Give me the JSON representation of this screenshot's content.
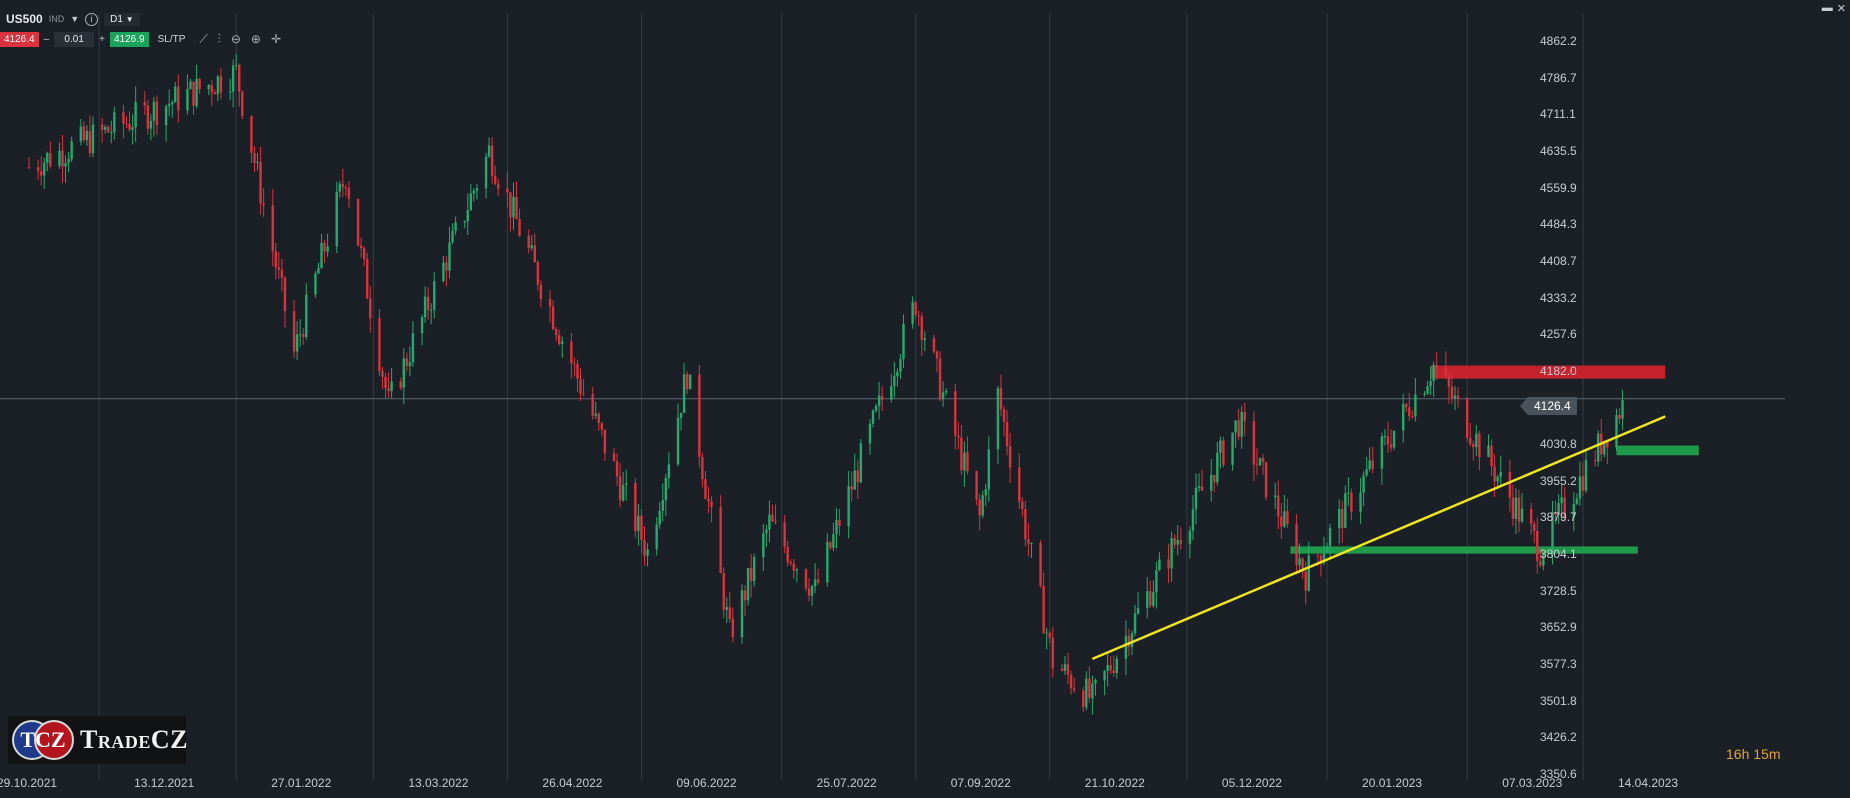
{
  "toolbar": {
    "symbol": "US500",
    "instrument_type": "IND",
    "timeframe": "D1",
    "sell_price": "4126.4",
    "volume": "0.01",
    "buy_price": "4126.9",
    "sltp_label": "SL/TP",
    "minus": "–",
    "plus": "+",
    "info": "i"
  },
  "colors": {
    "background": "#1b2026",
    "bull": "#26a96c",
    "bear": "#d8333f",
    "trendline": "#f1e51c",
    "resistance_zone": "#c4232e",
    "support_zone": "#1d9a4a"
  },
  "current_price_label": "4126.4",
  "countdown": "16h 15m",
  "logo": {
    "badge_text": "TCZ",
    "name": "TradeCZ"
  },
  "chart_data": {
    "type": "candlestick",
    "symbol": "US500",
    "timeframe": "D1",
    "y_ticks": [
      "4862.2",
      "4786.7",
      "4711.1",
      "4635.5",
      "4559.9",
      "4484.3",
      "4408.7",
      "4333.2",
      "4257.6",
      "4182.0",
      "4030.8",
      "3955.2",
      "3879.7",
      "3804.1",
      "3728.5",
      "3652.9",
      "3577.3",
      "3501.8",
      "3426.2",
      "3350.6"
    ],
    "ylim": [
      3350.6,
      4862.2
    ],
    "x_ticks": [
      "29.10.2021",
      "13.12.2021",
      "27.01.2022",
      "13.03.2022",
      "26.04.2022",
      "09.06.2022",
      "25.07.2022",
      "07.09.2022",
      "21.10.2022",
      "05.12.2022",
      "20.01.2023",
      "07.03.2023",
      "14.04.2023"
    ],
    "current_price": 4126.4,
    "grid": true,
    "path_close": [
      [
        "29.10.2021",
        4605
      ],
      [
        "13.12.2021",
        4712
      ],
      [
        "27.01.2022",
        4326
      ],
      [
        "13.03.2022",
        4204
      ],
      [
        "26.04.2022",
        4175
      ],
      [
        "09.06.2022",
        4017
      ],
      [
        "25.07.2022",
        3966
      ],
      [
        "07.09.2022",
        3979
      ],
      [
        "21.10.2022",
        3752
      ],
      [
        "05.12.2022",
        3998
      ],
      [
        "20.01.2023",
        3972
      ],
      [
        "07.03.2023",
        3986
      ],
      [
        "14.04.2023",
        null
      ]
    ],
    "swing_points": [
      {
        "date": "29.10.2021",
        "value": 4605
      },
      {
        "date": "05.01.2022",
        "value": 4800
      },
      {
        "date": "24.01.2022",
        "value": 4220
      },
      {
        "date": "10.02.2022",
        "value": 4590
      },
      {
        "date": "24.02.2022",
        "value": 4115
      },
      {
        "date": "29.03.2022",
        "value": 4637
      },
      {
        "date": "27.04.2022",
        "value": 4170
      },
      {
        "date": "20.05.2022",
        "value": 3810
      },
      {
        "date": "02.06.2022",
        "value": 4180
      },
      {
        "date": "16.06.2022",
        "value": 3640
      },
      {
        "date": "29.06.2022",
        "value": 3870
      },
      {
        "date": "14.07.2022",
        "value": 3730
      },
      {
        "date": "16.08.2022",
        "value": 4325
      },
      {
        "date": "06.09.2022",
        "value": 3880
      },
      {
        "date": "12.09.2022",
        "value": 4135
      },
      {
        "date": "30.09.2022",
        "value": 3585
      },
      {
        "date": "13.10.2022",
        "value": 3505
      },
      {
        "date": "30.11.2022",
        "value": 4080
      },
      {
        "date": "22.12.2022",
        "value": 3765
      },
      {
        "date": "02.02.2023",
        "value": 4195
      },
      {
        "date": "09.03.2023",
        "value": 3815
      },
      {
        "date": "06.04.2023",
        "value": 4125
      }
    ],
    "annotations": [
      {
        "kind": "trendline",
        "color": "yellow",
        "from": {
          "date": "13.10.2022",
          "value": 3590
        },
        "to": {
          "date": "19.04.2023",
          "value": 4090
        }
      },
      {
        "kind": "zone",
        "color": "red",
        "from_date": "01.02.2023",
        "to_date": "19.04.2023",
        "low": 4168,
        "high": 4195
      },
      {
        "kind": "zone",
        "color": "green",
        "from_date": "17.12.2022",
        "to_date": "10.04.2023",
        "low": 3807,
        "high": 3822
      },
      {
        "kind": "zone",
        "color": "green",
        "from_date": "03.04.2023",
        "to_date": "30.04.2023",
        "low": 4010,
        "high": 4030
      }
    ]
  }
}
